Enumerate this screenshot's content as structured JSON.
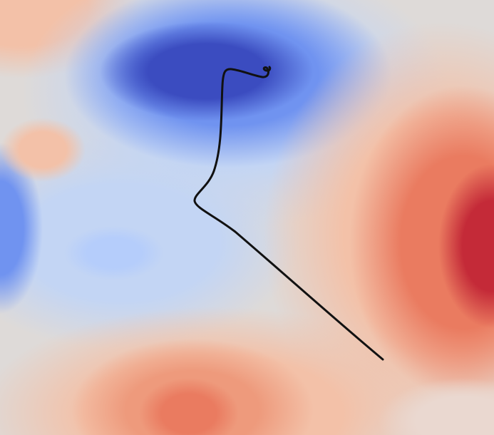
{
  "chart_data": {
    "type": "contour",
    "colormap": "coolwarm",
    "colors": {
      "deep_blue": "#3b4cc0",
      "mid_blue": "#7093f0",
      "light_blue": "#c3d5f4",
      "neutral": "#dedad8",
      "light_red": "#f3c1a8",
      "mid_red": "#ea7b60",
      "deep_red": "#c42a38",
      "path": "#111111"
    },
    "axes_visible": false,
    "grid": false,
    "legend": "none"
  }
}
